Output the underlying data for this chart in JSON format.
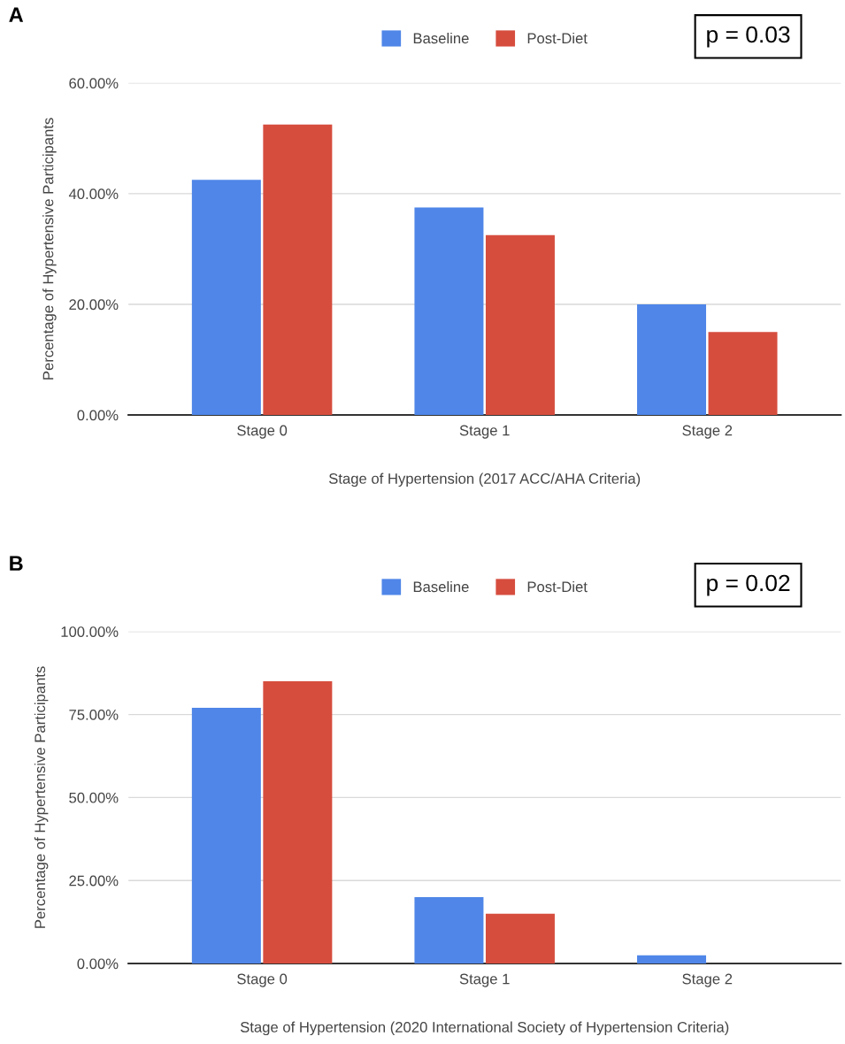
{
  "chart_data": [
    {
      "type": "bar",
      "xlabel": "Stage of Hypertension (2017 ACC/AHA Criteria)",
      "ylabel": "Percentage of Hypertensive Participants",
      "categories": [
        "Stage 0",
        "Stage 1",
        "Stage 2"
      ],
      "series": [
        {
          "name": "Baseline",
          "color": "#4f86e8",
          "values": [
            42.5,
            37.5,
            20
          ]
        },
        {
          "name": "Post-Diet",
          "color": "#d64d3e",
          "values": [
            52.5,
            32.5,
            15
          ]
        }
      ],
      "ylim": [
        0,
        60
      ],
      "yticks": [
        {
          "value": 0,
          "label": "0.00%"
        },
        {
          "value": 20,
          "label": "20.00%"
        },
        {
          "value": 40,
          "label": "40.00%"
        },
        {
          "value": 60,
          "label": "60.00%"
        }
      ],
      "grid": "y",
      "legend": "top",
      "annotations": [
        "A",
        "p = 0.03"
      ]
    },
    {
      "type": "bar",
      "xlabel": "Stage of Hypertension (2020 International Society of Hypertension Criteria)",
      "ylabel": "Percentage of Hypertensive Participants",
      "categories": [
        "Stage 0",
        "Stage 1",
        "Stage 2"
      ],
      "series": [
        {
          "name": "Baseline",
          "color": "#4f86e8",
          "values": [
            77,
            20,
            2.5
          ]
        },
        {
          "name": "Post-Diet",
          "color": "#d64d3e",
          "values": [
            85,
            15,
            0
          ]
        }
      ],
      "ylim": [
        0,
        100
      ],
      "yticks": [
        {
          "value": 0,
          "label": "0.00%"
        },
        {
          "value": 25,
          "label": "25.00%"
        },
        {
          "value": 50,
          "label": "50.00%"
        },
        {
          "value": 75,
          "label": "75.00%"
        },
        {
          "value": 100,
          "label": "100.00%"
        }
      ],
      "grid": "y",
      "legend": "top",
      "annotations": [
        "B",
        "p = 0.02"
      ]
    }
  ]
}
